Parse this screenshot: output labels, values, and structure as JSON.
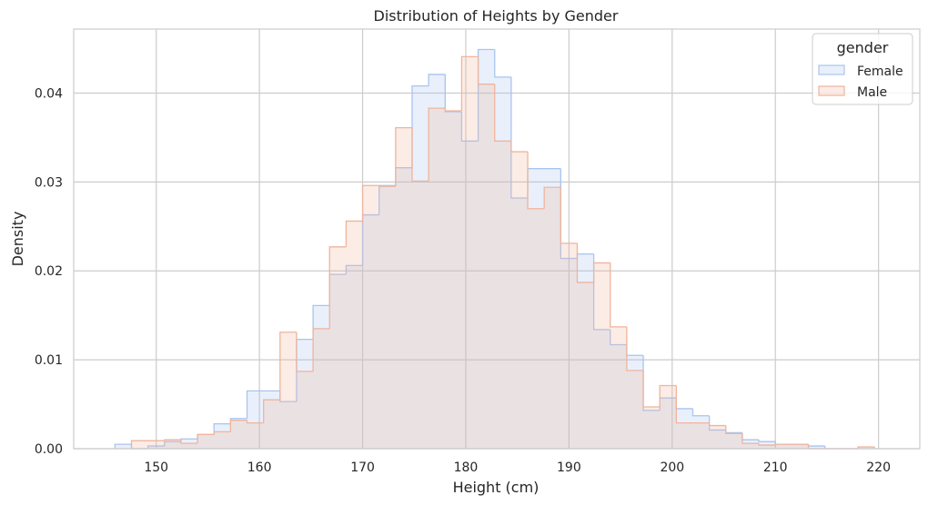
{
  "chart_data": {
    "type": "histogram",
    "title": "Distribution of Heights by Gender",
    "xlabel": "Height (cm)",
    "ylabel": "Density",
    "xlim": [
      142.0,
      224.0
    ],
    "ylim": [
      0.0,
      0.0472
    ],
    "xticks": [
      150,
      160,
      170,
      180,
      190,
      200,
      210,
      220
    ],
    "xtick_labels": [
      "150",
      "160",
      "170",
      "180",
      "190",
      "200",
      "210",
      "220"
    ],
    "yticks": [
      0.0,
      0.01,
      0.02,
      0.03,
      0.04
    ],
    "ytick_labels": [
      "0.00",
      "0.01",
      "0.02",
      "0.03",
      "0.04"
    ],
    "grid": true,
    "legend": {
      "title": "gender",
      "placement": "top-right"
    },
    "series": [
      {
        "name": "Female",
        "color": "#a8c4f0",
        "fill_color": "#a8c4f0",
        "edges": [
          146.0,
          147.6,
          149.2,
          150.8,
          152.4,
          154.0,
          155.6,
          157.2,
          158.8,
          162.0,
          163.6,
          165.2,
          166.8,
          168.4,
          170.0,
          171.6,
          173.2,
          174.8,
          176.4,
          178.0,
          179.6,
          181.2,
          182.8,
          184.4,
          186.0,
          187.6,
          189.2,
          190.8,
          192.4,
          194.0,
          195.6,
          197.2,
          198.8,
          200.4,
          202.0,
          203.6,
          205.2,
          206.8,
          208.4,
          210.0,
          213.2,
          214.8
        ],
        "densities": [
          0.0005,
          0.0,
          0.0003,
          0.0008,
          0.0011,
          0.0016,
          0.0028,
          0.0034,
          0.0065,
          0.0053,
          0.0123,
          0.0161,
          0.0196,
          0.0206,
          0.0263,
          0.0296,
          0.0316,
          0.0408,
          0.0421,
          0.0379,
          0.0346,
          0.0449,
          0.0418,
          0.0282,
          0.0315,
          0.0315,
          0.0214,
          0.0219,
          0.0134,
          0.0117,
          0.0105,
          0.0043,
          0.0057,
          0.0045,
          0.0037,
          0.0021,
          0.0018,
          0.001,
          0.0008,
          0.0005,
          0.0003
        ]
      },
      {
        "name": "Male",
        "color": "#f0b49c",
        "fill_color": "#f0b49c",
        "edges": [
          147.6,
          150.8,
          152.4,
          154.0,
          155.6,
          157.2,
          158.8,
          160.4,
          162.0,
          163.6,
          165.2,
          166.8,
          168.4,
          170.0,
          171.6,
          173.2,
          174.8,
          176.4,
          178.0,
          179.6,
          181.2,
          182.8,
          184.4,
          186.0,
          187.6,
          189.2,
          190.8,
          192.4,
          194.0,
          195.6,
          197.2,
          198.8,
          200.4,
          202.0,
          203.6,
          205.2,
          206.8,
          208.4,
          210.0,
          213.2,
          218.0,
          219.6
        ],
        "densities": [
          0.0009,
          0.001,
          0.0006,
          0.0016,
          0.0019,
          0.0032,
          0.0029,
          0.0055,
          0.0131,
          0.0087,
          0.0135,
          0.0227,
          0.0256,
          0.0296,
          0.0295,
          0.0361,
          0.0301,
          0.0383,
          0.038,
          0.0441,
          0.041,
          0.0346,
          0.0334,
          0.027,
          0.0294,
          0.0231,
          0.0187,
          0.0209,
          0.0137,
          0.0088,
          0.0047,
          0.0071,
          0.0029,
          0.0029,
          0.0026,
          0.0017,
          0.0006,
          0.0004,
          0.0005,
          0.0,
          0.0002
        ]
      }
    ]
  }
}
